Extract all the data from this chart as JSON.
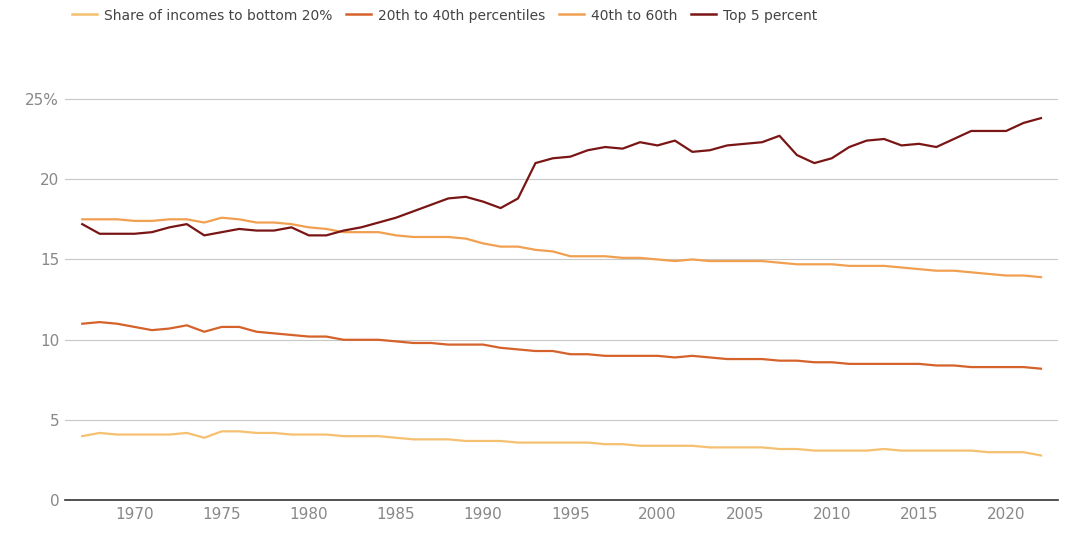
{
  "years": [
    1967,
    1968,
    1969,
    1970,
    1971,
    1972,
    1973,
    1974,
    1975,
    1976,
    1977,
    1978,
    1979,
    1980,
    1981,
    1982,
    1983,
    1984,
    1985,
    1986,
    1987,
    1988,
    1989,
    1990,
    1991,
    1992,
    1993,
    1994,
    1995,
    1996,
    1997,
    1998,
    1999,
    2000,
    2001,
    2002,
    2003,
    2004,
    2005,
    2006,
    2007,
    2008,
    2009,
    2010,
    2011,
    2012,
    2013,
    2014,
    2015,
    2016,
    2017,
    2018,
    2019,
    2020,
    2021,
    2022
  ],
  "bottom20": [
    4.0,
    4.2,
    4.1,
    4.1,
    4.1,
    4.1,
    4.2,
    3.9,
    4.3,
    4.3,
    4.2,
    4.2,
    4.1,
    4.1,
    4.1,
    4.0,
    4.0,
    4.0,
    3.9,
    3.8,
    3.8,
    3.8,
    3.7,
    3.7,
    3.7,
    3.6,
    3.6,
    3.6,
    3.6,
    3.6,
    3.5,
    3.5,
    3.4,
    3.4,
    3.4,
    3.4,
    3.3,
    3.3,
    3.3,
    3.3,
    3.2,
    3.2,
    3.1,
    3.1,
    3.1,
    3.1,
    3.2,
    3.1,
    3.1,
    3.1,
    3.1,
    3.1,
    3.0,
    3.0,
    3.0,
    2.8
  ],
  "pct20to40": [
    11.0,
    11.1,
    11.0,
    10.8,
    10.6,
    10.7,
    10.9,
    10.5,
    10.8,
    10.8,
    10.5,
    10.4,
    10.3,
    10.2,
    10.2,
    10.0,
    10.0,
    10.0,
    9.9,
    9.8,
    9.8,
    9.7,
    9.7,
    9.7,
    9.5,
    9.4,
    9.3,
    9.3,
    9.1,
    9.1,
    9.0,
    9.0,
    9.0,
    9.0,
    8.9,
    9.0,
    8.9,
    8.8,
    8.8,
    8.8,
    8.7,
    8.7,
    8.6,
    8.6,
    8.5,
    8.5,
    8.5,
    8.5,
    8.5,
    8.4,
    8.4,
    8.3,
    8.3,
    8.3,
    8.3,
    8.2
  ],
  "pct40to60": [
    17.5,
    17.5,
    17.5,
    17.4,
    17.4,
    17.5,
    17.5,
    17.3,
    17.6,
    17.5,
    17.3,
    17.3,
    17.2,
    17.0,
    16.9,
    16.7,
    16.7,
    16.7,
    16.5,
    16.4,
    16.4,
    16.4,
    16.3,
    16.0,
    15.8,
    15.8,
    15.6,
    15.5,
    15.2,
    15.2,
    15.2,
    15.1,
    15.1,
    15.0,
    14.9,
    15.0,
    14.9,
    14.9,
    14.9,
    14.9,
    14.8,
    14.7,
    14.7,
    14.7,
    14.6,
    14.6,
    14.6,
    14.5,
    14.4,
    14.3,
    14.3,
    14.2,
    14.1,
    14.0,
    14.0,
    13.9
  ],
  "top5": [
    17.2,
    16.6,
    16.6,
    16.6,
    16.7,
    17.0,
    17.2,
    16.5,
    16.7,
    16.9,
    16.8,
    16.8,
    17.0,
    16.5,
    16.5,
    16.8,
    17.0,
    17.3,
    17.6,
    18.0,
    18.4,
    18.8,
    18.9,
    18.6,
    18.2,
    18.8,
    21.0,
    21.3,
    21.4,
    21.8,
    22.0,
    21.9,
    22.3,
    22.1,
    22.4,
    21.7,
    21.8,
    22.1,
    22.2,
    22.3,
    22.7,
    21.5,
    21.0,
    21.3,
    22.0,
    22.4,
    22.5,
    22.1,
    22.2,
    22.0,
    22.5,
    23.0,
    23.0,
    23.0,
    23.5,
    23.8
  ],
  "color_bottom20": "#f5c070",
  "color_pct20to40": "#d4622a",
  "color_pct40to60": "#f0a050",
  "color_top5": "#7a1515",
  "label_bottom20": "Share of incomes to bottom 20%",
  "label_pct20to40": "20th to 40th percentiles",
  "label_pct40to60": "40th to 60th",
  "label_top5": "Top 5 percent",
  "yticks": [
    0,
    5,
    10,
    15,
    20,
    25
  ],
  "ytick_labels": [
    "0",
    "5",
    "10",
    "15",
    "20",
    "25%"
  ],
  "xticks": [
    1970,
    1975,
    1980,
    1985,
    1990,
    1995,
    2000,
    2005,
    2010,
    2015,
    2020
  ],
  "ylim_min": 0,
  "ylim_max": 27,
  "xlim_min": 1966,
  "xlim_max": 2023,
  "background_color": "#ffffff",
  "grid_color": "#c8c8c8",
  "tick_label_color": "#888888",
  "bottom_spine_color": "#333333",
  "linewidth": 1.6
}
